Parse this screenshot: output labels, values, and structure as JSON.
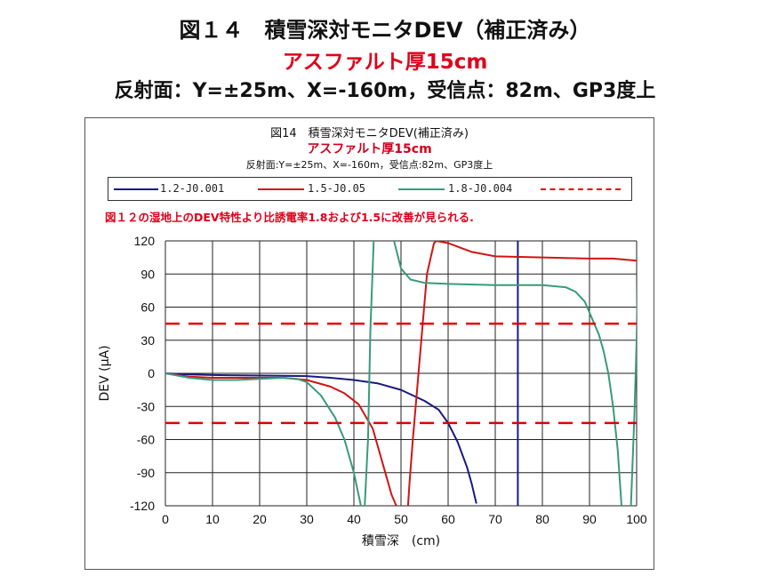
{
  "header": {
    "title": "図１４　積雪深対モニタDEV（補正済み）",
    "subtitle": "アスファルト厚15cm",
    "conditions": "反射面：Y=±25m、X=-160m，受信点：82m、GP3度上"
  },
  "chart_header": {
    "title": "図14　積雪深対モニタDEV(補正済み)",
    "subtitle": "アスファルト厚15cm",
    "conditions": "反射面:Y=±25m、X=-160m，受信点:82m、GP3度上"
  },
  "note": "図１２の湿地上のDEV特性より比誘電率1.8および1.5に改善が見られる.",
  "chart_data": {
    "type": "line",
    "xlabel": "積雪深　(cm)",
    "ylabel": "DEV (μA)",
    "xlim": [
      0,
      100
    ],
    "ylim": [
      -120,
      120
    ],
    "xticks": [
      0,
      10,
      20,
      30,
      40,
      50,
      60,
      70,
      80,
      90,
      100
    ],
    "yticks": [
      120,
      90,
      60,
      30,
      0,
      -30,
      -60,
      -90,
      -120
    ],
    "grid": true,
    "legend_position": "top",
    "series": [
      {
        "name": "1.2-J0.001",
        "color": "#1a1a80",
        "segments": [
          [
            [
              0,
              0
            ],
            [
              5,
              -1
            ],
            [
              10,
              -1.5
            ],
            [
              20,
              -2
            ],
            [
              30,
              -2.5
            ],
            [
              35,
              -4
            ],
            [
              40,
              -6
            ],
            [
              45,
              -9
            ],
            [
              50,
              -15
            ],
            [
              55,
              -25
            ],
            [
              58,
              -33
            ],
            [
              60,
              -45
            ],
            [
              62,
              -62
            ],
            [
              64,
              -85
            ],
            [
              65,
              -100
            ],
            [
              66,
              -118
            ]
          ],
          [
            [
              74.8,
              -120
            ],
            [
              74.8,
              120
            ]
          ]
        ]
      },
      {
        "name": "1.5-J0.05",
        "color": "#d01515",
        "segments": [
          [
            [
              0,
              0
            ],
            [
              5,
              -3
            ],
            [
              10,
              -4
            ],
            [
              20,
              -4
            ],
            [
              25,
              -4
            ],
            [
              30,
              -6
            ],
            [
              35,
              -12
            ],
            [
              38,
              -18
            ],
            [
              41,
              -28
            ],
            [
              44,
              -50
            ],
            [
              46,
              -80
            ],
            [
              48,
              -110
            ],
            [
              49,
              -120
            ]
          ],
          [
            [
              51.5,
              -120
            ],
            [
              51.8,
              -100
            ],
            [
              52.5,
              -60
            ],
            [
              53.5,
              -10
            ],
            [
              54.5,
              40
            ],
            [
              55.5,
              90
            ],
            [
              57,
              118
            ],
            [
              57.5,
              120
            ],
            [
              60,
              118
            ],
            [
              65,
              110
            ],
            [
              70,
              106
            ],
            [
              80,
              105
            ],
            [
              90,
              104
            ],
            [
              95,
              104
            ],
            [
              100,
              102
            ]
          ]
        ]
      },
      {
        "name": "1.8-J0.004",
        "color": "#3a9a7a",
        "segments": [
          [
            [
              0,
              0
            ],
            [
              5,
              -4
            ],
            [
              10,
              -6
            ],
            [
              15,
              -6
            ],
            [
              20,
              -5
            ],
            [
              25,
              -4
            ],
            [
              28,
              -5
            ],
            [
              30,
              -8
            ],
            [
              33,
              -20
            ],
            [
              36,
              -40
            ],
            [
              38,
              -60
            ],
            [
              40,
              -90
            ],
            [
              41.5,
              -120
            ]
          ],
          [
            [
              42.3,
              -120
            ],
            [
              43,
              -60
            ],
            [
              43.5,
              40
            ],
            [
              44.2,
              120
            ]
          ],
          [
            [
              48.5,
              120
            ],
            [
              50,
              95
            ],
            [
              52,
              85
            ],
            [
              55,
              82
            ],
            [
              60,
              81
            ],
            [
              70,
              80
            ],
            [
              80,
              80
            ],
            [
              85,
              78
            ],
            [
              87,
              74
            ],
            [
              89,
              65
            ],
            [
              90,
              55
            ],
            [
              92,
              35
            ],
            [
              93,
              20
            ],
            [
              94,
              0
            ],
            [
              95,
              -30
            ],
            [
              96,
              -70
            ],
            [
              96.8,
              -120
            ]
          ],
          [
            [
              98.8,
              -120
            ],
            [
              99.5,
              -40
            ],
            [
              100,
              30
            ],
            [
              100.3,
              120
            ]
          ]
        ]
      },
      {
        "name": "",
        "color": "#e00000",
        "dashed": true,
        "segments": [
          [
            [
              0,
              45
            ],
            [
              100,
              45
            ]
          ],
          [
            [
              0,
              -45
            ],
            [
              100,
              -45
            ]
          ]
        ]
      }
    ]
  }
}
